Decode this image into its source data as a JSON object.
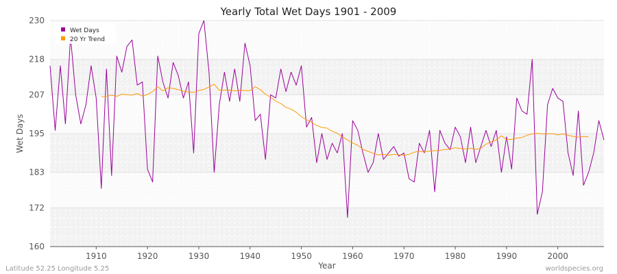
{
  "chart_data": {
    "type": "line",
    "title": "Yearly Total Wet Days 1901 - 2009",
    "xlabel": "Year",
    "ylabel": "Wet Days",
    "xlim": [
      1901,
      2009
    ],
    "ylim": [
      160,
      230
    ],
    "x_ticks": [
      1910,
      1920,
      1930,
      1940,
      1950,
      1960,
      1970,
      1980,
      1990,
      2000
    ],
    "y_ticks": [
      160,
      172,
      183,
      195,
      207,
      218,
      230
    ],
    "grid": true,
    "legend_position": "top-left",
    "series": [
      {
        "name": "Wet Days",
        "color": "#990099",
        "x_start": 1901,
        "values": [
          216,
          196,
          216,
          198,
          225,
          207,
          198,
          204,
          216,
          206,
          178,
          215,
          182,
          219,
          214,
          222,
          224,
          210,
          211,
          184,
          180,
          219,
          211,
          206,
          217,
          213,
          206,
          211,
          189,
          226,
          230,
          214,
          183,
          204,
          214,
          205,
          215,
          205,
          223,
          216,
          199,
          201,
          187,
          207,
          206,
          215,
          208,
          214,
          210,
          216,
          197,
          200,
          186,
          195,
          187,
          192,
          189,
          195,
          169,
          199,
          196,
          189,
          183,
          186,
          195,
          187,
          189,
          191,
          188,
          189,
          181,
          180,
          192,
          189,
          196,
          177,
          196,
          192,
          190,
          197,
          194,
          186,
          197,
          186,
          191,
          196,
          191,
          196,
          183,
          194,
          184,
          206,
          202,
          201,
          218,
          170,
          177,
          204,
          209,
          206,
          205,
          189,
          182,
          202,
          179,
          183,
          189,
          199,
          193
        ]
      },
      {
        "name": "20 Yr Trend",
        "color": "#ff9900",
        "x_start": 1911,
        "values": [
          206.4,
          206.5,
          206.9,
          206.5,
          207.2,
          207.0,
          206.9,
          207.4,
          206.6,
          207.1,
          208.0,
          209.5,
          208.2,
          209.2,
          209.0,
          208.6,
          208.1,
          207.9,
          207.8,
          208.3,
          208.7,
          209.4,
          210.3,
          208.4,
          208.4,
          208.5,
          208.2,
          208.4,
          208.3,
          208.3,
          209.5,
          208.6,
          207.2,
          206.2,
          205.1,
          204.3,
          203.1,
          202.6,
          201.6,
          200.2,
          199.3,
          198.5,
          197.5,
          196.9,
          196.7,
          195.7,
          195.1,
          194.0,
          193.0,
          192.1,
          191.4,
          190.1,
          189.5,
          188.9,
          188.4,
          188.6,
          188.3,
          188.6,
          188.4,
          188.3,
          188.6,
          189.2,
          189.5,
          189.3,
          189.6,
          189.7,
          189.8,
          190.1,
          190.2,
          190.6,
          190.4,
          190.2,
          190.5,
          190.1,
          190.5,
          191.7,
          192.5,
          193.0,
          194.3,
          193.2,
          193.2,
          193.6,
          193.8,
          194.5,
          194.9,
          195.1,
          194.9,
          194.9,
          195.0,
          194.6,
          194.9,
          194.5,
          194.1,
          193.9,
          194.1,
          194.0
        ]
      }
    ]
  },
  "footer": {
    "coords": "Latitude 52.25 Longitude 5.25",
    "credit": "worldspecies.org"
  }
}
